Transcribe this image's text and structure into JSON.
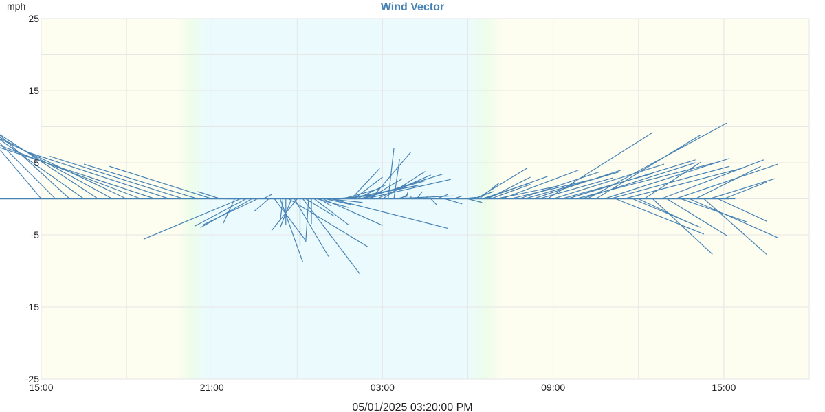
{
  "chart_data": {
    "type": "vector",
    "title": "Wind Vector",
    "ylabel": "mph",
    "xlabel": "05/01/2025 03:20:00 PM",
    "x_tick_labels": [
      "15:00",
      "21:00",
      "03:00",
      "09:00",
      "15:00"
    ],
    "x_tick_hours": [
      0,
      6,
      12,
      18,
      24
    ],
    "xlim_hours": [
      0,
      27
    ],
    "y_tick_labels": [
      "25",
      "15",
      "5",
      "-5",
      "-15",
      "-25"
    ],
    "y_ticks": [
      25,
      15,
      5,
      -5,
      -15,
      -25
    ],
    "ylim": [
      -25,
      25
    ],
    "grid": true,
    "vector_origin_y": 0,
    "colors": {
      "title": "#4682b4",
      "vector": "#4682b4",
      "day_band": "#fdfdf0",
      "night_band": "#ebfbfd",
      "twilight": "#edfdea",
      "grid": "#e6e6e6"
    },
    "bands": [
      {
        "type": "day",
        "from": 0,
        "to": 4.8
      },
      {
        "type": "night",
        "from": 5.8,
        "to": 15.0
      },
      {
        "type": "day",
        "from": 16.2,
        "to": 27
      }
    ],
    "vectors": [
      {
        "x": 0.0,
        "u": -4.6,
        "v": 6.8
      },
      {
        "x": 0.5,
        "u": -6.0,
        "v": 7.7
      },
      {
        "x": 1.0,
        "u": -7.3,
        "v": 8.8
      },
      {
        "x": 1.5,
        "u": -6.8,
        "v": 8.2
      },
      {
        "x": 2.0,
        "u": -7.4,
        "v": 8.9
      },
      {
        "x": 2.5,
        "u": -6.6,
        "v": 8.5
      },
      {
        "x": 3.0,
        "u": -7.1,
        "v": 8.3
      },
      {
        "x": 3.5,
        "u": -6.3,
        "v": 7.4
      },
      {
        "x": 4.0,
        "u": -5.6,
        "v": 7.1
      },
      {
        "x": 4.5,
        "u": -5.0,
        "v": 6.5
      },
      {
        "x": 5.0,
        "u": -4.7,
        "v": 5.9
      },
      {
        "x": 5.5,
        "u": -4.0,
        "v": 4.8
      },
      {
        "x": 6.0,
        "u": -3.6,
        "v": 4.5
      },
      {
        "x": 6.3,
        "u": -0.8,
        "v": 1.0
      },
      {
        "x": 6.5,
        "u": 1.0,
        "v": 0.0
      },
      {
        "x": 6.8,
        "u": -0.4,
        "v": -3.4
      },
      {
        "x": 7.0,
        "u": -3.4,
        "v": -5.6
      },
      {
        "x": 7.2,
        "u": -1.8,
        "v": -3.8
      },
      {
        "x": 7.4,
        "u": -1.8,
        "v": -4.0
      },
      {
        "x": 7.6,
        "u": -1.9,
        "v": -3.6
      },
      {
        "x": 7.8,
        "u": 0.3,
        "v": 0.6
      },
      {
        "x": 8.0,
        "u": -0.5,
        "v": -1.7
      },
      {
        "x": 8.2,
        "u": 1.1,
        "v": -5.8
      },
      {
        "x": 8.4,
        "u": 0.8,
        "v": -8.8
      },
      {
        "x": 8.5,
        "u": -0.1,
        "v": -3.1
      },
      {
        "x": 8.6,
        "u": 0.0,
        "v": -3.6
      },
      {
        "x": 8.7,
        "u": 2.8,
        "v": -6.7
      },
      {
        "x": 8.8,
        "u": -0.4,
        "v": -4.0
      },
      {
        "x": 8.9,
        "u": 1.2,
        "v": -8.0
      },
      {
        "x": 9.0,
        "u": -0.9,
        "v": -4.4
      },
      {
        "x": 9.1,
        "u": 0.0,
        "v": -6.5
      },
      {
        "x": 9.2,
        "u": 2.0,
        "v": -10.4
      },
      {
        "x": 9.3,
        "u": 1.0,
        "v": -2.4
      },
      {
        "x": 9.4,
        "u": -0.1,
        "v": -6.0
      },
      {
        "x": 9.5,
        "u": 0.0,
        "v": -3.5
      },
      {
        "x": 9.6,
        "u": 1.2,
        "v": -3.6
      },
      {
        "x": 9.7,
        "u": 1.1,
        "v": -1.2
      },
      {
        "x": 9.8,
        "u": 0.4,
        "v": -1.0
      },
      {
        "x": 9.9,
        "u": 2.1,
        "v": -3.7
      },
      {
        "x": 10.0,
        "u": 0.9,
        "v": -0.8
      },
      {
        "x": 10.1,
        "u": 1.2,
        "v": -0.5
      },
      {
        "x": 10.2,
        "u": 4.1,
        "v": -4.1
      },
      {
        "x": 10.3,
        "u": 1.2,
        "v": 0.4
      },
      {
        "x": 10.5,
        "u": 1.1,
        "v": 0.5
      },
      {
        "x": 10.6,
        "u": 1.3,
        "v": 1.4
      },
      {
        "x": 10.7,
        "u": 2.6,
        "v": 1.9
      },
      {
        "x": 10.8,
        "u": 2.4,
        "v": 1.8
      },
      {
        "x": 10.9,
        "u": 1.0,
        "v": 4.2
      },
      {
        "x": 11.0,
        "u": 1.0,
        "v": 3.0
      },
      {
        "x": 11.1,
        "u": 1.0,
        "v": 1.9
      },
      {
        "x": 11.2,
        "u": 2.3,
        "v": 2.5
      },
      {
        "x": 11.3,
        "u": 2.8,
        "v": 3.4
      },
      {
        "x": 11.4,
        "u": 3.0,
        "v": 2.7
      },
      {
        "x": 11.5,
        "u": 1.2,
        "v": 2.8
      },
      {
        "x": 11.6,
        "u": 1.4,
        "v": 6.5
      },
      {
        "x": 11.8,
        "u": 1.9,
        "v": 3.3
      },
      {
        "x": 12.0,
        "u": 1.5,
        "v": 3.8
      },
      {
        "x": 12.2,
        "u": 0.2,
        "v": 7.0
      },
      {
        "x": 12.3,
        "u": 2.2,
        "v": 0.4
      },
      {
        "x": 12.4,
        "u": 0.2,
        "v": 5.5
      },
      {
        "x": 12.5,
        "u": 0.4,
        "v": 0.4
      },
      {
        "x": 12.6,
        "u": 0.3,
        "v": 0.6
      },
      {
        "x": 12.8,
        "u": 0.1,
        "v": 1.0
      },
      {
        "x": 13.0,
        "u": 0.0,
        "v": 0.4
      },
      {
        "x": 13.2,
        "u": 0.2,
        "v": 1.0
      },
      {
        "x": 13.5,
        "u": 0.1,
        "v": 0.4
      },
      {
        "x": 13.7,
        "u": 0.2,
        "v": -0.8
      },
      {
        "x": 13.9,
        "u": 0.4,
        "v": 0.6
      },
      {
        "x": 14.2,
        "u": 0.6,
        "v": -0.7
      },
      {
        "x": 14.5,
        "u": 0.3,
        "v": 0.4
      },
      {
        "x": 14.8,
        "u": 0.5,
        "v": 0.2
      },
      {
        "x": 15.0,
        "u": 0.5,
        "v": -0.5
      },
      {
        "x": 15.2,
        "u": 0.7,
        "v": 1.0
      },
      {
        "x": 15.3,
        "u": 1.8,
        "v": 4.3
      },
      {
        "x": 15.4,
        "u": 0.7,
        "v": 2.2
      },
      {
        "x": 15.5,
        "u": 1.7,
        "v": 2.2
      },
      {
        "x": 15.6,
        "u": 2.2,
        "v": 3.1
      },
      {
        "x": 15.7,
        "u": 1.5,
        "v": 3.0
      },
      {
        "x": 15.8,
        "u": 1.4,
        "v": 2.0
      },
      {
        "x": 16.0,
        "u": 2.2,
        "v": 1.8
      },
      {
        "x": 16.2,
        "u": 2.7,
        "v": 4.0
      },
      {
        "x": 16.5,
        "u": 3.0,
        "v": 2.8
      },
      {
        "x": 16.8,
        "u": 2.8,
        "v": 3.7
      },
      {
        "x": 17.0,
        "u": 3.3,
        "v": 3.7
      },
      {
        "x": 17.3,
        "u": 3.1,
        "v": 4.0
      },
      {
        "x": 17.5,
        "u": 2.6,
        "v": 2.9
      },
      {
        "x": 17.8,
        "u": 3.7,
        "v": 9.2
      },
      {
        "x": 18.0,
        "u": 3.9,
        "v": 4.8
      },
      {
        "x": 18.3,
        "u": 3.2,
        "v": 3.5
      },
      {
        "x": 18.5,
        "u": 4.5,
        "v": 5.4
      },
      {
        "x": 18.8,
        "u": 5.0,
        "v": 5.1
      },
      {
        "x": 19.0,
        "u": 4.0,
        "v": 5.0
      },
      {
        "x": 19.2,
        "u": 4.9,
        "v": 10.5
      },
      {
        "x": 19.5,
        "u": 3.7,
        "v": 8.9
      },
      {
        "x": 19.8,
        "u": 4.4,
        "v": 5.6
      },
      {
        "x": 20.0,
        "u": 4.2,
        "v": 4.5
      },
      {
        "x": 20.2,
        "u": 3.1,
        "v": -4.9
      },
      {
        "x": 20.5,
        "u": 4.2,
        "v": 4.3
      },
      {
        "x": 20.8,
        "u": 2.4,
        "v": -4.0
      },
      {
        "x": 21.0,
        "u": 1.7,
        "v": -3.2
      },
      {
        "x": 21.2,
        "u": 2.0,
        "v": 5.1
      },
      {
        "x": 21.5,
        "u": 2.1,
        "v": -7.7
      },
      {
        "x": 21.8,
        "u": 3.6,
        "v": 5.4
      },
      {
        "x": 22.0,
        "u": 2.1,
        "v": -5.1
      },
      {
        "x": 22.3,
        "u": 3.6,
        "v": 4.8
      },
      {
        "x": 22.5,
        "u": 2.3,
        "v": -3.2
      },
      {
        "x": 22.8,
        "u": 3.1,
        "v": -5.4
      },
      {
        "x": 23.0,
        "u": 2.3,
        "v": 4.5
      },
      {
        "x": 23.3,
        "u": 2.2,
        "v": -7.7
      },
      {
        "x": 23.5,
        "u": 2.3,
        "v": 2.8
      },
      {
        "x": 23.8,
        "u": 1.7,
        "v": -3.1
      },
      {
        "x": 24.0,
        "u": 1.5,
        "v": 2.3
      },
      {
        "x": 24.1,
        "u": 0.3,
        "v": 0.0
      }
    ]
  }
}
